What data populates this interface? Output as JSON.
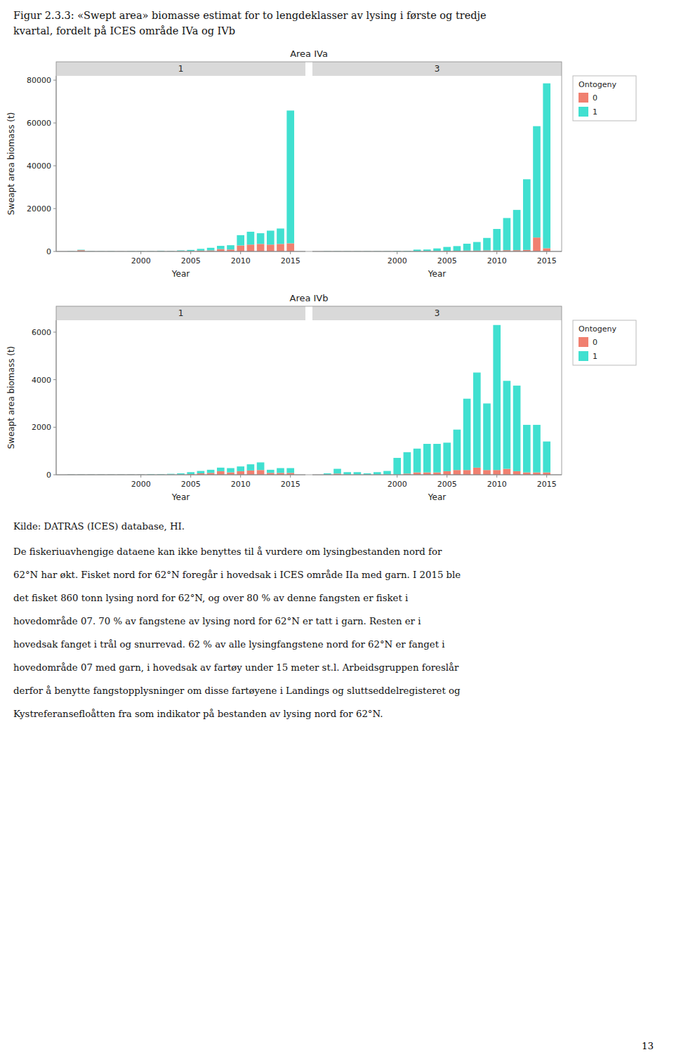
{
  "page_title_lines": [
    "Figur 2.3.3: «Swept area» biomasse estimat for to lengdeklasser av lysing i første og tredje",
    "kvartal, fordelt på ICES område IVa og IVb"
  ],
  "source_note": "Kilde: DATRAS (ICES) database, HI.",
  "body_text_lines": [
    "De fiskeriuavhengige dataene kan ikke benyttes til å vurdere om lysingbestanden nord for",
    "62°N har økt. Fisket nord for 62°N foregår i hovedsak i ICES område IIa med garn. I 2015 ble",
    "det fisket 860 tonn lysing nord for 62°N, og over 80 % av denne fangsten er fisket i",
    "hovedområde 07. 70 % av fangstene av lysing nord for 62°N er tatt i garn. Resten er i",
    "hovedsak fanget i trål og snurrevad. 62 % av alle lysingfangstene nord for 62°N er fanget i",
    "hovedområde 07 med garn, i hovedsak av fartøy under 15 meter st.l. Arbeidsgruppen foreslår",
    "derfor å benytte fangstopplysninger om disse fartøyene i Landings og sluttseddelregisteret og",
    "Kystreferansefloåtten fra som indikator på bestanden av lysing nord for 62°N."
  ],
  "page_number": "13",
  "chart_data": [
    {
      "type": "bar",
      "title": "Area IVa",
      "stacked": true,
      "ylabel": "Sweapt area biomass (t)",
      "ylim": [
        0,
        82000
      ],
      "yticks": [
        0,
        20000,
        40000,
        60000,
        80000
      ],
      "legend": "right",
      "legend_title": "Ontogeny",
      "series": [
        {
          "name": "0",
          "color": "#F08070"
        },
        {
          "name": "1",
          "color": "#40E0D0"
        }
      ],
      "panels": [
        {
          "title": "1",
          "xlabel": "Year",
          "x": [
            1993,
            1994,
            1995,
            1996,
            1997,
            1998,
            1999,
            2000,
            2001,
            2002,
            2003,
            2004,
            2005,
            2006,
            2007,
            2008,
            2009,
            2010,
            2011,
            2012,
            2013,
            2014,
            2015
          ],
          "xlim": [
            1991.5,
            2016.5
          ],
          "xticks": [
            2000,
            2005,
            2010,
            2015
          ],
          "series": [
            {
              "values": [
                50,
                600,
                50,
                30,
                50,
                50,
                50,
                50,
                50,
                150,
                100,
                200,
                200,
                400,
                500,
                1100,
                900,
                2800,
                3200,
                3500,
                3200,
                3500,
                3800
              ]
            },
            {
              "values": [
                100,
                200,
                100,
                80,
                100,
                50,
                100,
                100,
                100,
                200,
                150,
                300,
                500,
                800,
                1200,
                1500,
                2000,
                4800,
                6000,
                5000,
                6500,
                7200,
                62000
              ]
            }
          ]
        },
        {
          "title": "3",
          "xlabel": "Year",
          "x": [
            1993,
            1994,
            1995,
            1996,
            1997,
            1998,
            1999,
            2000,
            2001,
            2002,
            2003,
            2004,
            2005,
            2006,
            2007,
            2008,
            2009,
            2010,
            2011,
            2012,
            2013,
            2014,
            2015
          ],
          "xlim": [
            1991.5,
            2016.5
          ],
          "xticks": [
            2000,
            2005,
            2010,
            2015
          ],
          "series": [
            {
              "values": [
                50,
                50,
                50,
                50,
                50,
                50,
                50,
                50,
                50,
                50,
                200,
                200,
                300,
                300,
                400,
                400,
                500,
                500,
                600,
                600,
                700,
                6500,
                1500
              ]
            },
            {
              "values": [
                100,
                100,
                100,
                100,
                100,
                100,
                100,
                200,
                200,
                800,
                700,
                1200,
                1800,
                2200,
                3200,
                4000,
                5800,
                10000,
                15000,
                18800,
                33000,
                52000,
                77000
              ]
            }
          ]
        }
      ]
    },
    {
      "type": "bar",
      "title": "Area IVb",
      "stacked": true,
      "ylabel": "Sweapt area biomass (t)",
      "ylim": [
        0,
        6500
      ],
      "yticks": [
        0,
        2000,
        4000,
        6000
      ],
      "legend": "right",
      "legend_title": "Ontogeny",
      "series": [
        {
          "name": "0",
          "color": "#F08070"
        },
        {
          "name": "1",
          "color": "#40E0D0"
        }
      ],
      "panels": [
        {
          "title": "1",
          "xlabel": "Year",
          "x": [
            1993,
            1994,
            1995,
            1996,
            1997,
            1998,
            1999,
            2000,
            2001,
            2002,
            2003,
            2004,
            2005,
            2006,
            2007,
            2008,
            2009,
            2010,
            2011,
            2012,
            2013,
            2014,
            2015
          ],
          "xlim": [
            1991.5,
            2016.5
          ],
          "xticks": [
            2000,
            2005,
            2010,
            2015
          ],
          "series": [
            {
              "values": [
                10,
                10,
                10,
                10,
                10,
                10,
                10,
                10,
                10,
                10,
                10,
                10,
                30,
                60,
                80,
                150,
                100,
                150,
                180,
                200,
                80,
                80,
                80
              ]
            },
            {
              "values": [
                10,
                10,
                10,
                10,
                10,
                10,
                10,
                10,
                20,
                20,
                30,
                50,
                80,
                100,
                130,
                150,
                180,
                200,
                260,
                320,
                130,
                200,
                200
              ]
            }
          ]
        },
        {
          "title": "3",
          "xlabel": "Year",
          "x": [
            1993,
            1994,
            1995,
            1996,
            1997,
            1998,
            1999,
            2000,
            2001,
            2002,
            2003,
            2004,
            2005,
            2006,
            2007,
            2008,
            2009,
            2010,
            2011,
            2012,
            2013,
            2014,
            2015
          ],
          "xlim": [
            1991.5,
            2016.5
          ],
          "xticks": [
            2000,
            2005,
            2010,
            2015
          ],
          "series": [
            {
              "values": [
                10,
                50,
                10,
                10,
                10,
                10,
                10,
                10,
                50,
                100,
                100,
                100,
                150,
                200,
                200,
                300,
                200,
                200,
                250,
                150,
                100,
                100,
                100
              ]
            },
            {
              "values": [
                50,
                200,
                100,
                100,
                50,
                100,
                150,
                700,
                900,
                1000,
                1200,
                1200,
                1200,
                1700,
                3000,
                4000,
                2800,
                6100,
                3700,
                3600,
                2000,
                2000,
                1300
              ]
            }
          ]
        }
      ]
    }
  ]
}
